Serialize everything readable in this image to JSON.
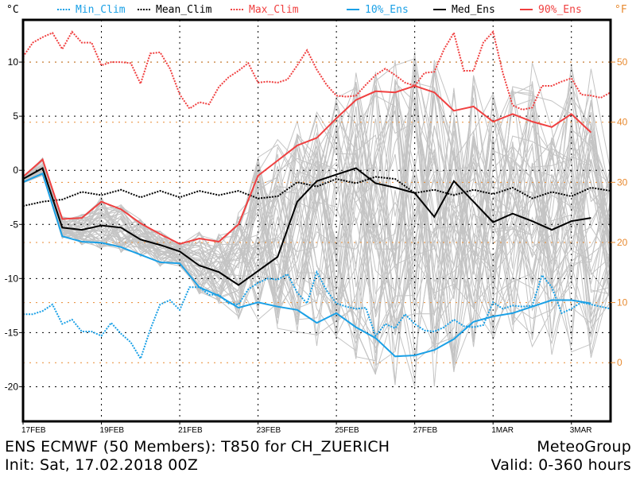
{
  "chart_data": {
    "type": "line",
    "title": "ENS ECMWF (50 Members): T850 for CH_ZUERICH",
    "subtitle": "Init: Sat, 17.02.2018 00Z",
    "provider": "MeteoGroup",
    "valid": "Valid: 0-360 hours",
    "ylabel_left": "°C",
    "ylabel_right": "°F",
    "x_unit": "hours since init",
    "xlim": [
      0,
      360
    ],
    "ylim": [
      -23.2,
      13.9
    ],
    "grid": true,
    "legend_position": "top",
    "x_ticks": [
      {
        "hour": 0,
        "label": "17FEB"
      },
      {
        "hour": 48,
        "label": "19FEB"
      },
      {
        "hour": 96,
        "label": "21FEB"
      },
      {
        "hour": 144,
        "label": "23FEB"
      },
      {
        "hour": 192,
        "label": "25FEB"
      },
      {
        "hour": 240,
        "label": "27FEB"
      },
      {
        "hour": 288,
        "label": "1MAR"
      },
      {
        "hour": 336,
        "label": "3MAR"
      }
    ],
    "y_ticks_c": [
      10,
      5,
      0,
      -5,
      -10,
      -15,
      -20
    ],
    "y_ticks_c_labels": [
      "10",
      "5",
      "0",
      "-5",
      "-10",
      "-15",
      "-20"
    ],
    "y_ticks_f": [
      50,
      40,
      30,
      20,
      10,
      0
    ],
    "y_ticks_f_labels": [
      "50",
      "40",
      "30",
      "20",
      "10",
      "0"
    ],
    "legend": [
      {
        "name": "Min_Clim",
        "color": "#1aa0e6",
        "style": "dashed"
      },
      {
        "name": "Mean_Clim",
        "color": "#000000",
        "style": "dashed"
      },
      {
        "name": "Max_Clim",
        "color": "#f04040",
        "style": "dashed"
      },
      {
        "name": "10%_Ens",
        "color": "#1aa0e6",
        "style": "solid"
      },
      {
        "name": "Med_Ens",
        "color": "#000000",
        "style": "solid"
      },
      {
        "name": "90%_Ens",
        "color": "#f04040",
        "style": "solid"
      }
    ],
    "colors": {
      "blue": "#1aa0e6",
      "red": "#f04040",
      "black": "#000000",
      "orange": "#e88a30",
      "member": "#c4c4c4"
    },
    "series": [
      {
        "name": "Max_Clim",
        "x": [
          0,
          6,
          12,
          18,
          24,
          30,
          36,
          42,
          48,
          54,
          60,
          66,
          72,
          78,
          84,
          90,
          96,
          102,
          108,
          114,
          120,
          126,
          132,
          138,
          144,
          150,
          156,
          162,
          168,
          174,
          180,
          186,
          192,
          198,
          204,
          210,
          216,
          222,
          228,
          234,
          240,
          246,
          252,
          258,
          264,
          270,
          276,
          282,
          288,
          294,
          300,
          306,
          312,
          318,
          324,
          330,
          336,
          342,
          348,
          354,
          360
        ],
        "values": [
          10.5,
          11.8,
          12.3,
          12.7,
          11.2,
          12.8,
          11.8,
          11.8,
          9.7,
          10.0,
          10.0,
          9.9,
          8.0,
          10.8,
          10.9,
          9.4,
          7.0,
          5.7,
          6.3,
          6.1,
          7.7,
          8.6,
          9.2,
          9.9,
          8.1,
          8.2,
          8.1,
          8.4,
          9.7,
          11.1,
          9.3,
          7.9,
          6.9,
          6.8,
          6.9,
          7.9,
          8.8,
          9.4,
          8.8,
          8.1,
          7.8,
          9.0,
          9.1,
          11.2,
          12.7,
          9.2,
          9.2,
          11.8,
          12.8,
          9.0,
          6.0,
          5.6,
          5.8,
          7.8,
          7.8,
          8.2,
          8.5,
          7.0,
          6.9,
          6.7,
          7.2
        ]
      },
      {
        "name": "Mean_Clim",
        "x": [
          0,
          12,
          24,
          36,
          48,
          60,
          72,
          84,
          96,
          108,
          120,
          132,
          144,
          156,
          168,
          180,
          192,
          204,
          216,
          228,
          240,
          252,
          264,
          276,
          288,
          300,
          312,
          324,
          336,
          348,
          360
        ],
        "values": [
          -3.3,
          -2.9,
          -2.7,
          -2.0,
          -2.3,
          -1.8,
          -2.5,
          -1.9,
          -2.5,
          -1.9,
          -2.3,
          -1.9,
          -2.6,
          -2.4,
          -1.1,
          -1.5,
          -0.8,
          -1.2,
          -0.6,
          -0.8,
          -2.1,
          -1.8,
          -2.3,
          -1.8,
          -2.2,
          -1.6,
          -2.6,
          -2.0,
          -2.4,
          -1.6,
          -1.9
        ]
      },
      {
        "name": "Min_Clim",
        "x": [
          0,
          6,
          12,
          18,
          24,
          30,
          36,
          42,
          48,
          54,
          60,
          66,
          72,
          78,
          84,
          90,
          96,
          102,
          108,
          114,
          120,
          126,
          132,
          138,
          144,
          150,
          156,
          162,
          168,
          174,
          180,
          186,
          192,
          198,
          204,
          210,
          216,
          222,
          228,
          234,
          240,
          246,
          252,
          258,
          264,
          270,
          276,
          282,
          288,
          294,
          300,
          306,
          312,
          318,
          324,
          330,
          336,
          342,
          348,
          354,
          360
        ],
        "values": [
          -13.3,
          -13.3,
          -13.0,
          -12.4,
          -14.2,
          -13.8,
          -14.9,
          -14.9,
          -15.3,
          -14.1,
          -15.1,
          -15.9,
          -17.4,
          -14.7,
          -12.4,
          -12.0,
          -12.9,
          -10.8,
          -10.8,
          -11.5,
          -11.5,
          -12.3,
          -12.4,
          -11.0,
          -10.4,
          -10.0,
          -10.1,
          -9.6,
          -11.3,
          -12.3,
          -9.4,
          -11.1,
          -12.3,
          -12.6,
          -12.8,
          -12.7,
          -15.3,
          -14.2,
          -14.6,
          -13.3,
          -14.2,
          -14.8,
          -14.9,
          -14.5,
          -13.8,
          -14.4,
          -14.5,
          -14.3,
          -12.2,
          -12.8,
          -12.5,
          -12.6,
          -12.5,
          -9.7,
          -10.8,
          -13.2,
          -12.8,
          -12.2,
          -12.4,
          -12.6,
          -12.8
        ]
      },
      {
        "name": "90%_Ens",
        "x": [
          0,
          12,
          24,
          36,
          48,
          60,
          72,
          84,
          96,
          108,
          120,
          132,
          144,
          156,
          168,
          180,
          192,
          204,
          216,
          228,
          240,
          252,
          264,
          276,
          288,
          300,
          312,
          324,
          336,
          348
        ],
        "values": [
          -0.6,
          1.0,
          -4.5,
          -4.4,
          -2.9,
          -3.6,
          -4.9,
          -5.9,
          -6.8,
          -6.3,
          -6.6,
          -5.0,
          -0.5,
          0.9,
          2.3,
          3.0,
          4.8,
          6.5,
          7.3,
          7.2,
          7.8,
          7.2,
          5.5,
          5.9,
          4.5,
          5.2,
          4.5,
          4.0,
          5.2,
          3.5
        ]
      },
      {
        "name": "Med_Ens",
        "x": [
          0,
          12,
          24,
          36,
          48,
          60,
          72,
          84,
          96,
          108,
          120,
          132,
          144,
          156,
          168,
          180,
          192,
          204,
          216,
          228,
          240,
          252,
          264,
          276,
          288,
          300,
          312,
          324,
          336,
          348
        ],
        "values": [
          -0.8,
          0.2,
          -5.3,
          -5.5,
          -5.1,
          -5.3,
          -6.4,
          -6.9,
          -7.5,
          -8.8,
          -9.4,
          -10.6,
          -9.3,
          -8.0,
          -2.9,
          -1.0,
          -0.4,
          0.2,
          -1.2,
          -1.6,
          -2.1,
          -4.3,
          -1.0,
          -2.9,
          -4.8,
          -4.0,
          -4.7,
          -5.5,
          -4.7,
          -4.4
        ]
      },
      {
        "name": "10%_Ens",
        "x": [
          0,
          12,
          24,
          36,
          48,
          60,
          72,
          84,
          96,
          108,
          120,
          132,
          144,
          156,
          168,
          180,
          192,
          204,
          216,
          228,
          240,
          252,
          264,
          276,
          288,
          300,
          312,
          324,
          336,
          348
        ],
        "values": [
          -1.1,
          -0.3,
          -6.1,
          -6.6,
          -6.7,
          -7.1,
          -7.8,
          -8.5,
          -8.6,
          -10.8,
          -11.6,
          -12.7,
          -12.2,
          -12.6,
          -12.9,
          -14.1,
          -13.2,
          -14.5,
          -15.5,
          -17.2,
          -17.1,
          -16.6,
          -15.6,
          -14.0,
          -13.5,
          -13.2,
          -12.6,
          -12.0,
          -12.0,
          -12.3
        ]
      }
    ]
  }
}
